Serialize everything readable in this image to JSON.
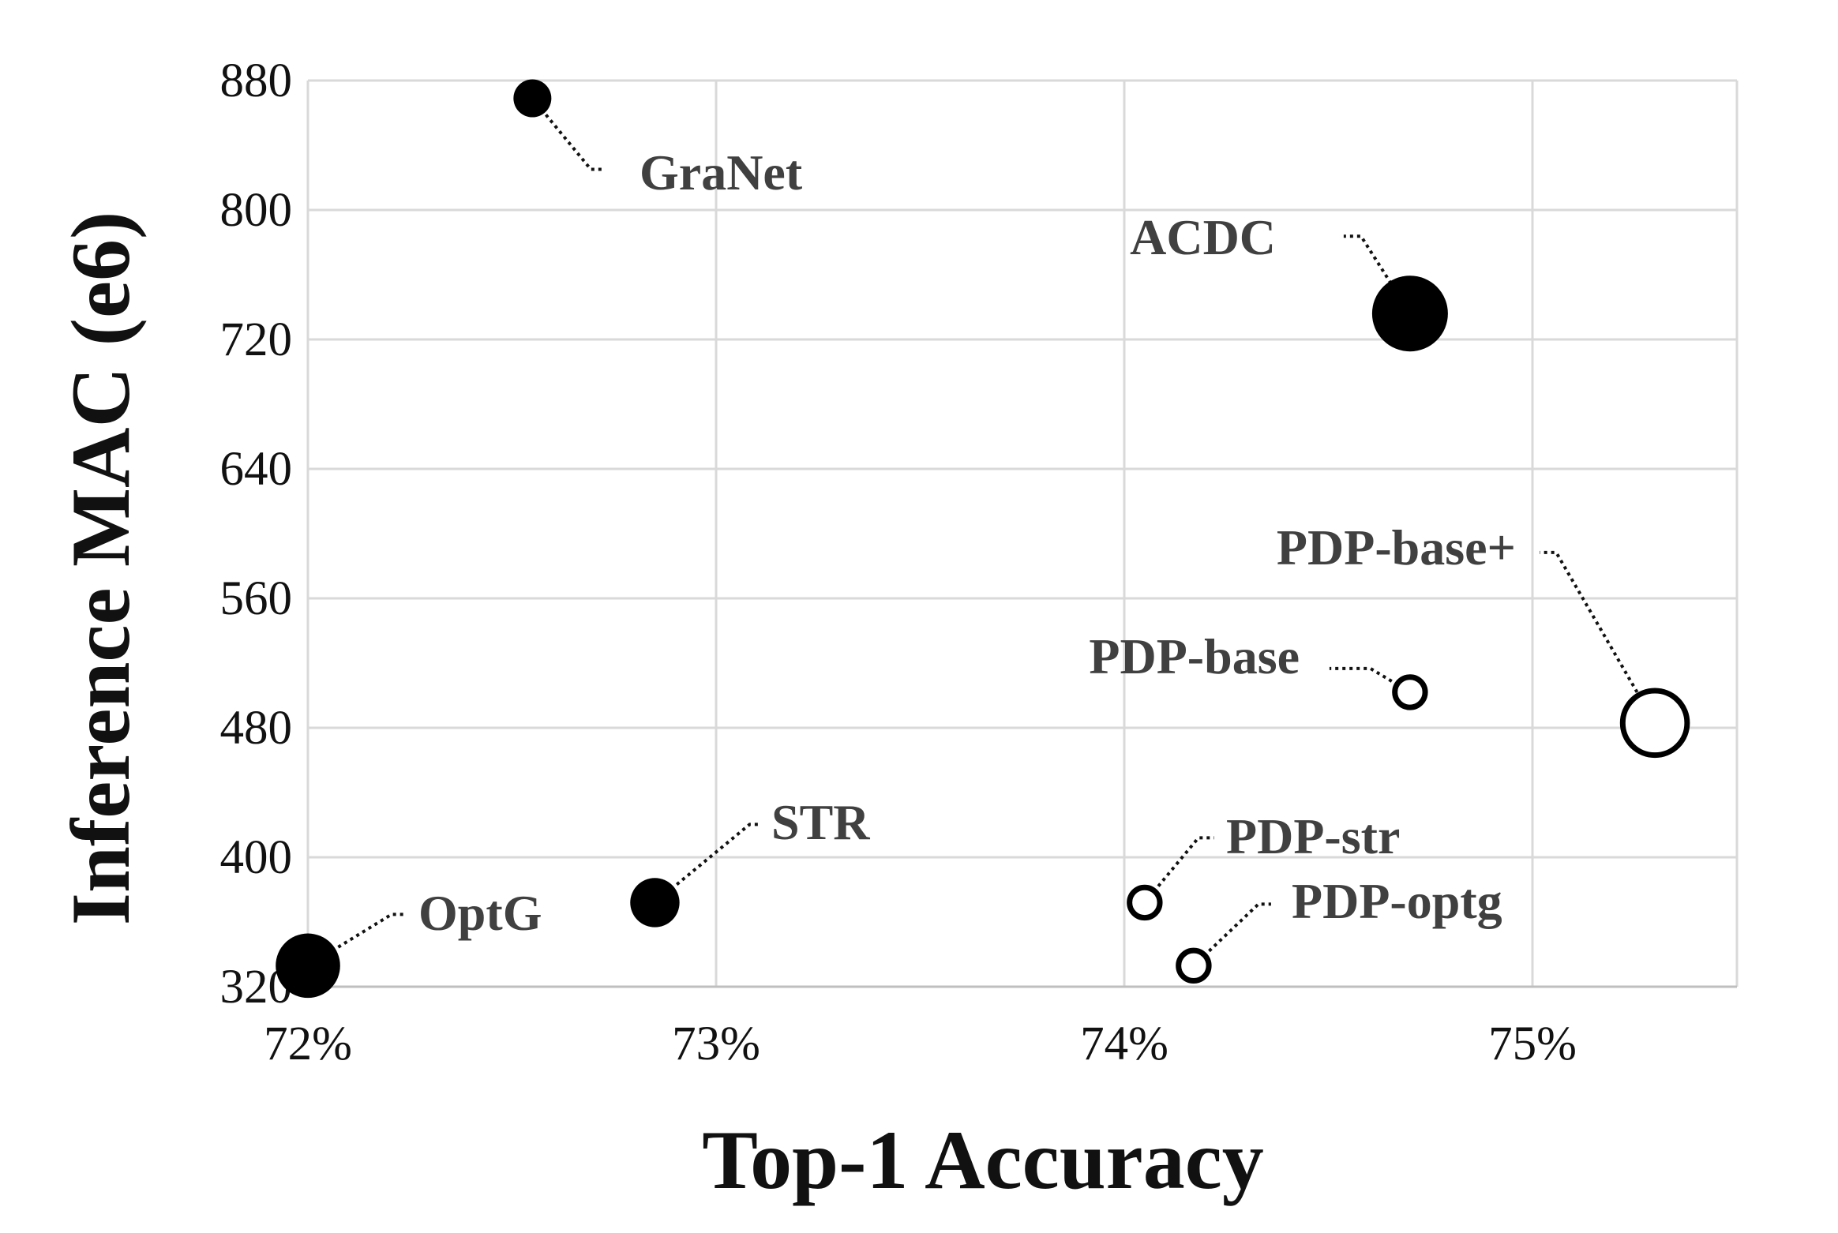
{
  "chart_data": {
    "type": "scatter",
    "xlabel": "Top-1 Accuracy",
    "ylabel": "Inference MAC (e6)",
    "xlim": [
      0.72,
      0.755
    ],
    "ylim": [
      320,
      880
    ],
    "x_ticks": [
      0.72,
      0.73,
      0.74,
      0.75
    ],
    "x_tick_labels": [
      "72%",
      "73%",
      "74%",
      "75%"
    ],
    "y_ticks": [
      320,
      400,
      480,
      560,
      640,
      720,
      800,
      880
    ],
    "y_tick_labels": [
      "320",
      "400",
      "480",
      "560",
      "640",
      "720",
      "800",
      "880"
    ],
    "grid": true,
    "legend": "none",
    "marker_fill_color": "#000000",
    "background_color": "#ffffff",
    "points": [
      {
        "label": "GraNet",
        "x": 0.7255,
        "y": 869,
        "size": 1.0,
        "filled": true
      },
      {
        "label": "ACDC",
        "x": 0.747,
        "y": 736,
        "size": 2.0,
        "filled": true
      },
      {
        "label": "PDP-base+",
        "x": 0.753,
        "y": 483,
        "size": 1.7,
        "filled": false
      },
      {
        "label": "PDP-base",
        "x": 0.747,
        "y": 502,
        "size": 0.8,
        "filled": false
      },
      {
        "label": "STR",
        "x": 0.7285,
        "y": 372,
        "size": 1.3,
        "filled": true
      },
      {
        "label": "PDP-str",
        "x": 0.7405,
        "y": 372,
        "size": 0.8,
        "filled": false
      },
      {
        "label": "OptG",
        "x": 0.72,
        "y": 333,
        "size": 1.7,
        "filled": true
      },
      {
        "label": "PDP-optg",
        "x": 0.7417,
        "y": 333,
        "size": 0.8,
        "filled": false
      }
    ]
  }
}
